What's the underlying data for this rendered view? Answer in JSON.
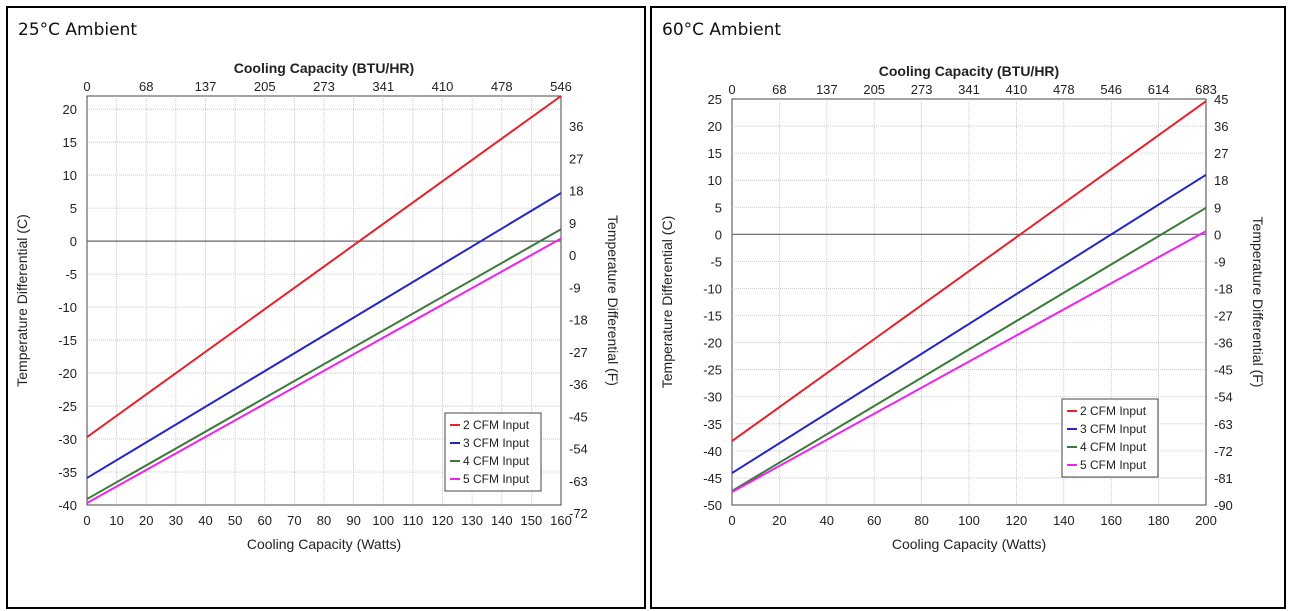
{
  "panels": [
    {
      "title": "25°C Ambient",
      "chart_data": {
        "type": "line",
        "title": "25°C Ambient",
        "xlabel": "Cooling Capacity (Watts)",
        "x2label": "Cooling Capacity (BTU/HR)",
        "ylabel": "Temperature Differential (C)",
        "y2label": "Temperature Differential (F)",
        "xlim": [
          0,
          160
        ],
        "ylim": [
          -40,
          22
        ],
        "x_ticks": [
          "0",
          "10",
          "20",
          "30",
          "40",
          "50",
          "60",
          "70",
          "80",
          "90",
          "100",
          "110",
          "120",
          "130",
          "140",
          "150",
          "160"
        ],
        "y_ticks": [
          "-40",
          "-35",
          "-30",
          "-25",
          "-20",
          "-15",
          "-10",
          "-5",
          "0",
          "5",
          "10",
          "15",
          "20"
        ],
        "x2_ticks": [
          "0",
          "68",
          "137",
          "205",
          "273",
          "341",
          "410",
          "478",
          "546"
        ],
        "y2_ticks": [
          "36",
          "27",
          "18",
          "9",
          "0",
          "-9",
          "-18",
          "-27",
          "-36",
          "-45",
          "-54",
          "-63",
          "-72"
        ],
        "grid": true,
        "legend": "bottom-right",
        "series": [
          {
            "name": "2 CFM Input",
            "color": "#e8202a",
            "x": [
              0,
              160
            ],
            "y": [
              -29.7,
              22.0
            ]
          },
          {
            "name": "3 CFM Input",
            "color": "#2326c8",
            "x": [
              0,
              160
            ],
            "y": [
              -35.9,
              7.3
            ]
          },
          {
            "name": "4 CFM Input",
            "color": "#3a7a3a",
            "x": [
              0,
              160
            ],
            "y": [
              -39.1,
              1.8
            ]
          },
          {
            "name": "5 CFM Input",
            "color": "#ee22ee",
            "x": [
              0,
              160
            ],
            "y": [
              -39.7,
              0.4
            ]
          }
        ]
      }
    },
    {
      "title": "60°C Ambient",
      "chart_data": {
        "type": "line",
        "title": "60°C Ambient",
        "xlabel": "Cooling Capacity (Watts)",
        "x2label": "Cooling Capacity (BTU/HR)",
        "ylabel": "Temperature Differential (C)",
        "y2label": "Temperature Differential (F)",
        "xlim": [
          0,
          200
        ],
        "ylim": [
          -50,
          25
        ],
        "x_ticks": [
          "0",
          "20",
          "40",
          "60",
          "80",
          "100",
          "120",
          "140",
          "160",
          "180",
          "200"
        ],
        "y_ticks": [
          "-50",
          "-45",
          "-40",
          "-35",
          "-30",
          "-25",
          "-20",
          "-15",
          "-10",
          "-5",
          "0",
          "5",
          "10",
          "15",
          "20",
          "25"
        ],
        "x2_ticks": [
          "0",
          "68",
          "137",
          "205",
          "273",
          "341",
          "410",
          "478",
          "546",
          "614",
          "683"
        ],
        "y2_ticks": [
          "45",
          "36",
          "27",
          "18",
          "9",
          "0",
          "-9",
          "-18",
          "-27",
          "-36",
          "-45",
          "-54",
          "-63",
          "-72",
          "-81",
          "-90"
        ],
        "grid": true,
        "legend": "bottom-right",
        "series": [
          {
            "name": "2 CFM Input",
            "color": "#e8202a",
            "x": [
              0,
              200
            ],
            "y": [
              -38.2,
              24.6
            ]
          },
          {
            "name": "3 CFM Input",
            "color": "#2326c8",
            "x": [
              0,
              200
            ],
            "y": [
              -44.1,
              11.0
            ]
          },
          {
            "name": "4 CFM Input",
            "color": "#3a7a3a",
            "x": [
              0,
              200
            ],
            "y": [
              -47.4,
              4.9
            ]
          },
          {
            "name": "5 CFM Input",
            "color": "#ee22ee",
            "x": [
              0,
              200
            ],
            "y": [
              -47.6,
              0.6
            ]
          }
        ]
      }
    }
  ]
}
